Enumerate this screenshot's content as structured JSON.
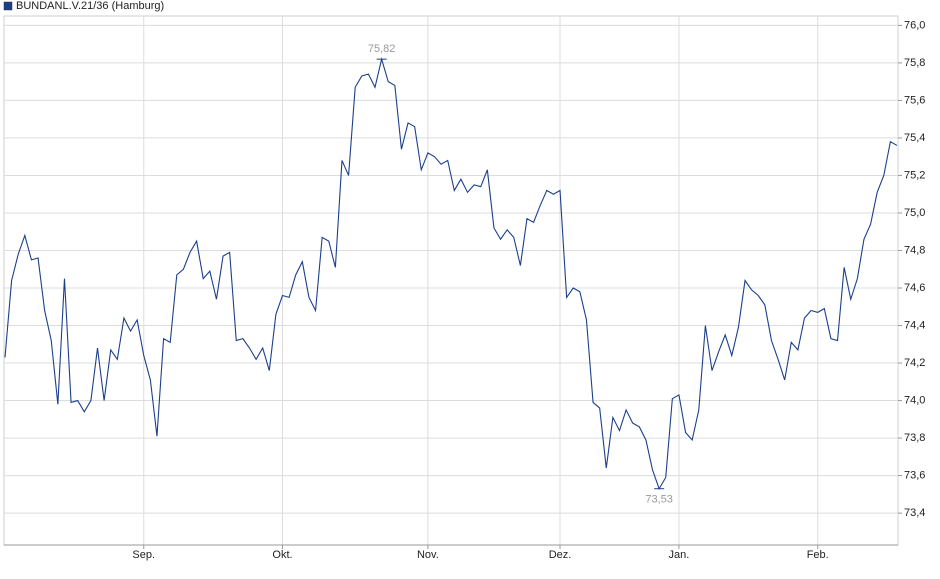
{
  "chart_data": {
    "type": "line",
    "categories": [
      null,
      null,
      null,
      null,
      null,
      null,
      null,
      null,
      null,
      null,
      null,
      null,
      null,
      null,
      null,
      null,
      null,
      null,
      null,
      null,
      null,
      "Sep.",
      null,
      null,
      null,
      null,
      null,
      null,
      null,
      null,
      null,
      null,
      null,
      null,
      null,
      null,
      null,
      null,
      null,
      null,
      null,
      null,
      "Okt.",
      null,
      null,
      null,
      null,
      null,
      null,
      null,
      null,
      null,
      null,
      null,
      null,
      null,
      null,
      null,
      null,
      null,
      null,
      null,
      null,
      null,
      "Nov.",
      null,
      null,
      null,
      null,
      null,
      null,
      null,
      null,
      null,
      null,
      null,
      null,
      null,
      null,
      null,
      null,
      null,
      null,
      null,
      "Dez.",
      null,
      null,
      null,
      null,
      null,
      null,
      null,
      null,
      null,
      null,
      null,
      null,
      null,
      null,
      null,
      null,
      null,
      "Jan.",
      null,
      null,
      null,
      null,
      null,
      null,
      null,
      null,
      null,
      null,
      null,
      null,
      null,
      null,
      null,
      null,
      null,
      null,
      null,
      null,
      "Feb.",
      null,
      null,
      null,
      null,
      null,
      null,
      null,
      null,
      null,
      null,
      null,
      null
    ],
    "series": [
      {
        "name": "BUNDANL.V.21/36 (Hamburg)",
        "color": "#1c3f8c",
        "values": [
          74.23,
          74.64,
          74.78,
          74.88,
          74.75,
          74.76,
          74.48,
          74.32,
          73.98,
          74.65,
          73.99,
          74.0,
          73.94,
          74.0,
          74.28,
          74.0,
          74.27,
          74.22,
          74.44,
          74.37,
          74.43,
          74.24,
          74.11,
          73.81,
          74.33,
          74.31,
          74.67,
          74.7,
          74.79,
          74.85,
          74.65,
          74.69,
          74.54,
          74.77,
          74.79,
          74.32,
          74.33,
          74.28,
          74.22,
          74.28,
          74.16,
          74.46,
          74.56,
          74.55,
          74.67,
          74.74,
          74.55,
          74.48,
          74.87,
          74.85,
          74.71,
          75.28,
          75.2,
          75.67,
          75.73,
          75.74,
          75.67,
          75.82,
          75.7,
          75.68,
          75.34,
          75.48,
          75.46,
          75.23,
          75.32,
          75.3,
          75.26,
          75.28,
          75.12,
          75.18,
          75.11,
          75.15,
          75.14,
          75.23,
          74.92,
          74.86,
          74.91,
          74.87,
          74.72,
          74.97,
          74.95,
          75.04,
          75.12,
          75.1,
          75.12,
          74.55,
          74.6,
          74.58,
          74.43,
          73.99,
          73.96,
          73.64,
          73.91,
          73.84,
          73.95,
          73.88,
          73.86,
          73.79,
          73.63,
          73.53,
          73.59,
          74.01,
          74.03,
          73.83,
          73.79,
          73.95,
          74.4,
          74.16,
          74.26,
          74.35,
          74.24,
          74.39,
          74.64,
          74.59,
          74.56,
          74.51,
          74.32,
          74.22,
          74.11,
          74.31,
          74.27,
          74.44,
          74.48,
          74.47,
          74.49,
          74.33,
          74.32,
          74.71,
          74.54,
          74.65,
          74.86,
          74.94,
          75.11,
          75.2,
          75.38,
          75.36
        ],
        "value_labels": [
          null,
          null,
          null,
          null,
          null,
          null,
          null,
          null,
          null,
          null,
          null,
          null,
          null,
          null,
          null,
          null,
          null,
          null,
          null,
          null,
          null,
          null,
          null,
          null,
          null,
          null,
          null,
          null,
          null,
          null,
          null,
          null,
          null,
          null,
          null,
          null,
          null,
          null,
          null,
          null,
          null,
          null,
          null,
          null,
          null,
          null,
          null,
          null,
          null,
          null,
          null,
          null,
          null,
          null,
          null,
          null,
          null,
          "75,82",
          null,
          null,
          null,
          null,
          null,
          null,
          null,
          null,
          null,
          null,
          null,
          null,
          null,
          null,
          null,
          null,
          null,
          null,
          null,
          null,
          null,
          null,
          null,
          null,
          null,
          null,
          null,
          null,
          null,
          null,
          null,
          null,
          null,
          null,
          null,
          null,
          null,
          null,
          null,
          null,
          null,
          "73,53",
          null,
          null,
          null,
          null,
          null,
          null,
          null,
          null,
          null,
          null,
          null,
          null,
          null,
          null,
          null,
          null,
          null,
          null,
          null,
          null,
          null,
          null,
          null,
          null,
          null,
          null,
          null,
          null,
          null,
          null,
          null,
          null,
          null,
          null,
          null,
          null
        ]
      }
    ],
    "ylim": [
      73.23,
      76.05
    ],
    "yticks": [
      {
        "value": 73.4,
        "label": "73,4"
      },
      {
        "value": 73.6,
        "label": "73,6"
      },
      {
        "value": 73.8,
        "label": "73,8"
      },
      {
        "value": 74.0,
        "label": "74,0"
      },
      {
        "value": 74.2,
        "label": "74,2"
      },
      {
        "value": 74.4,
        "label": "74,4"
      },
      {
        "value": 74.6,
        "label": "74,6"
      },
      {
        "value": 74.8,
        "label": "74,8"
      },
      {
        "value": 75.0,
        "label": "75,0"
      },
      {
        "value": 75.2,
        "label": "75,2"
      },
      {
        "value": 75.4,
        "label": "75,4"
      },
      {
        "value": 75.6,
        "label": "75,6"
      },
      {
        "value": 75.8,
        "label": "75,8"
      },
      {
        "value": 76.0,
        "label": "76,0"
      }
    ],
    "grid": true
  }
}
